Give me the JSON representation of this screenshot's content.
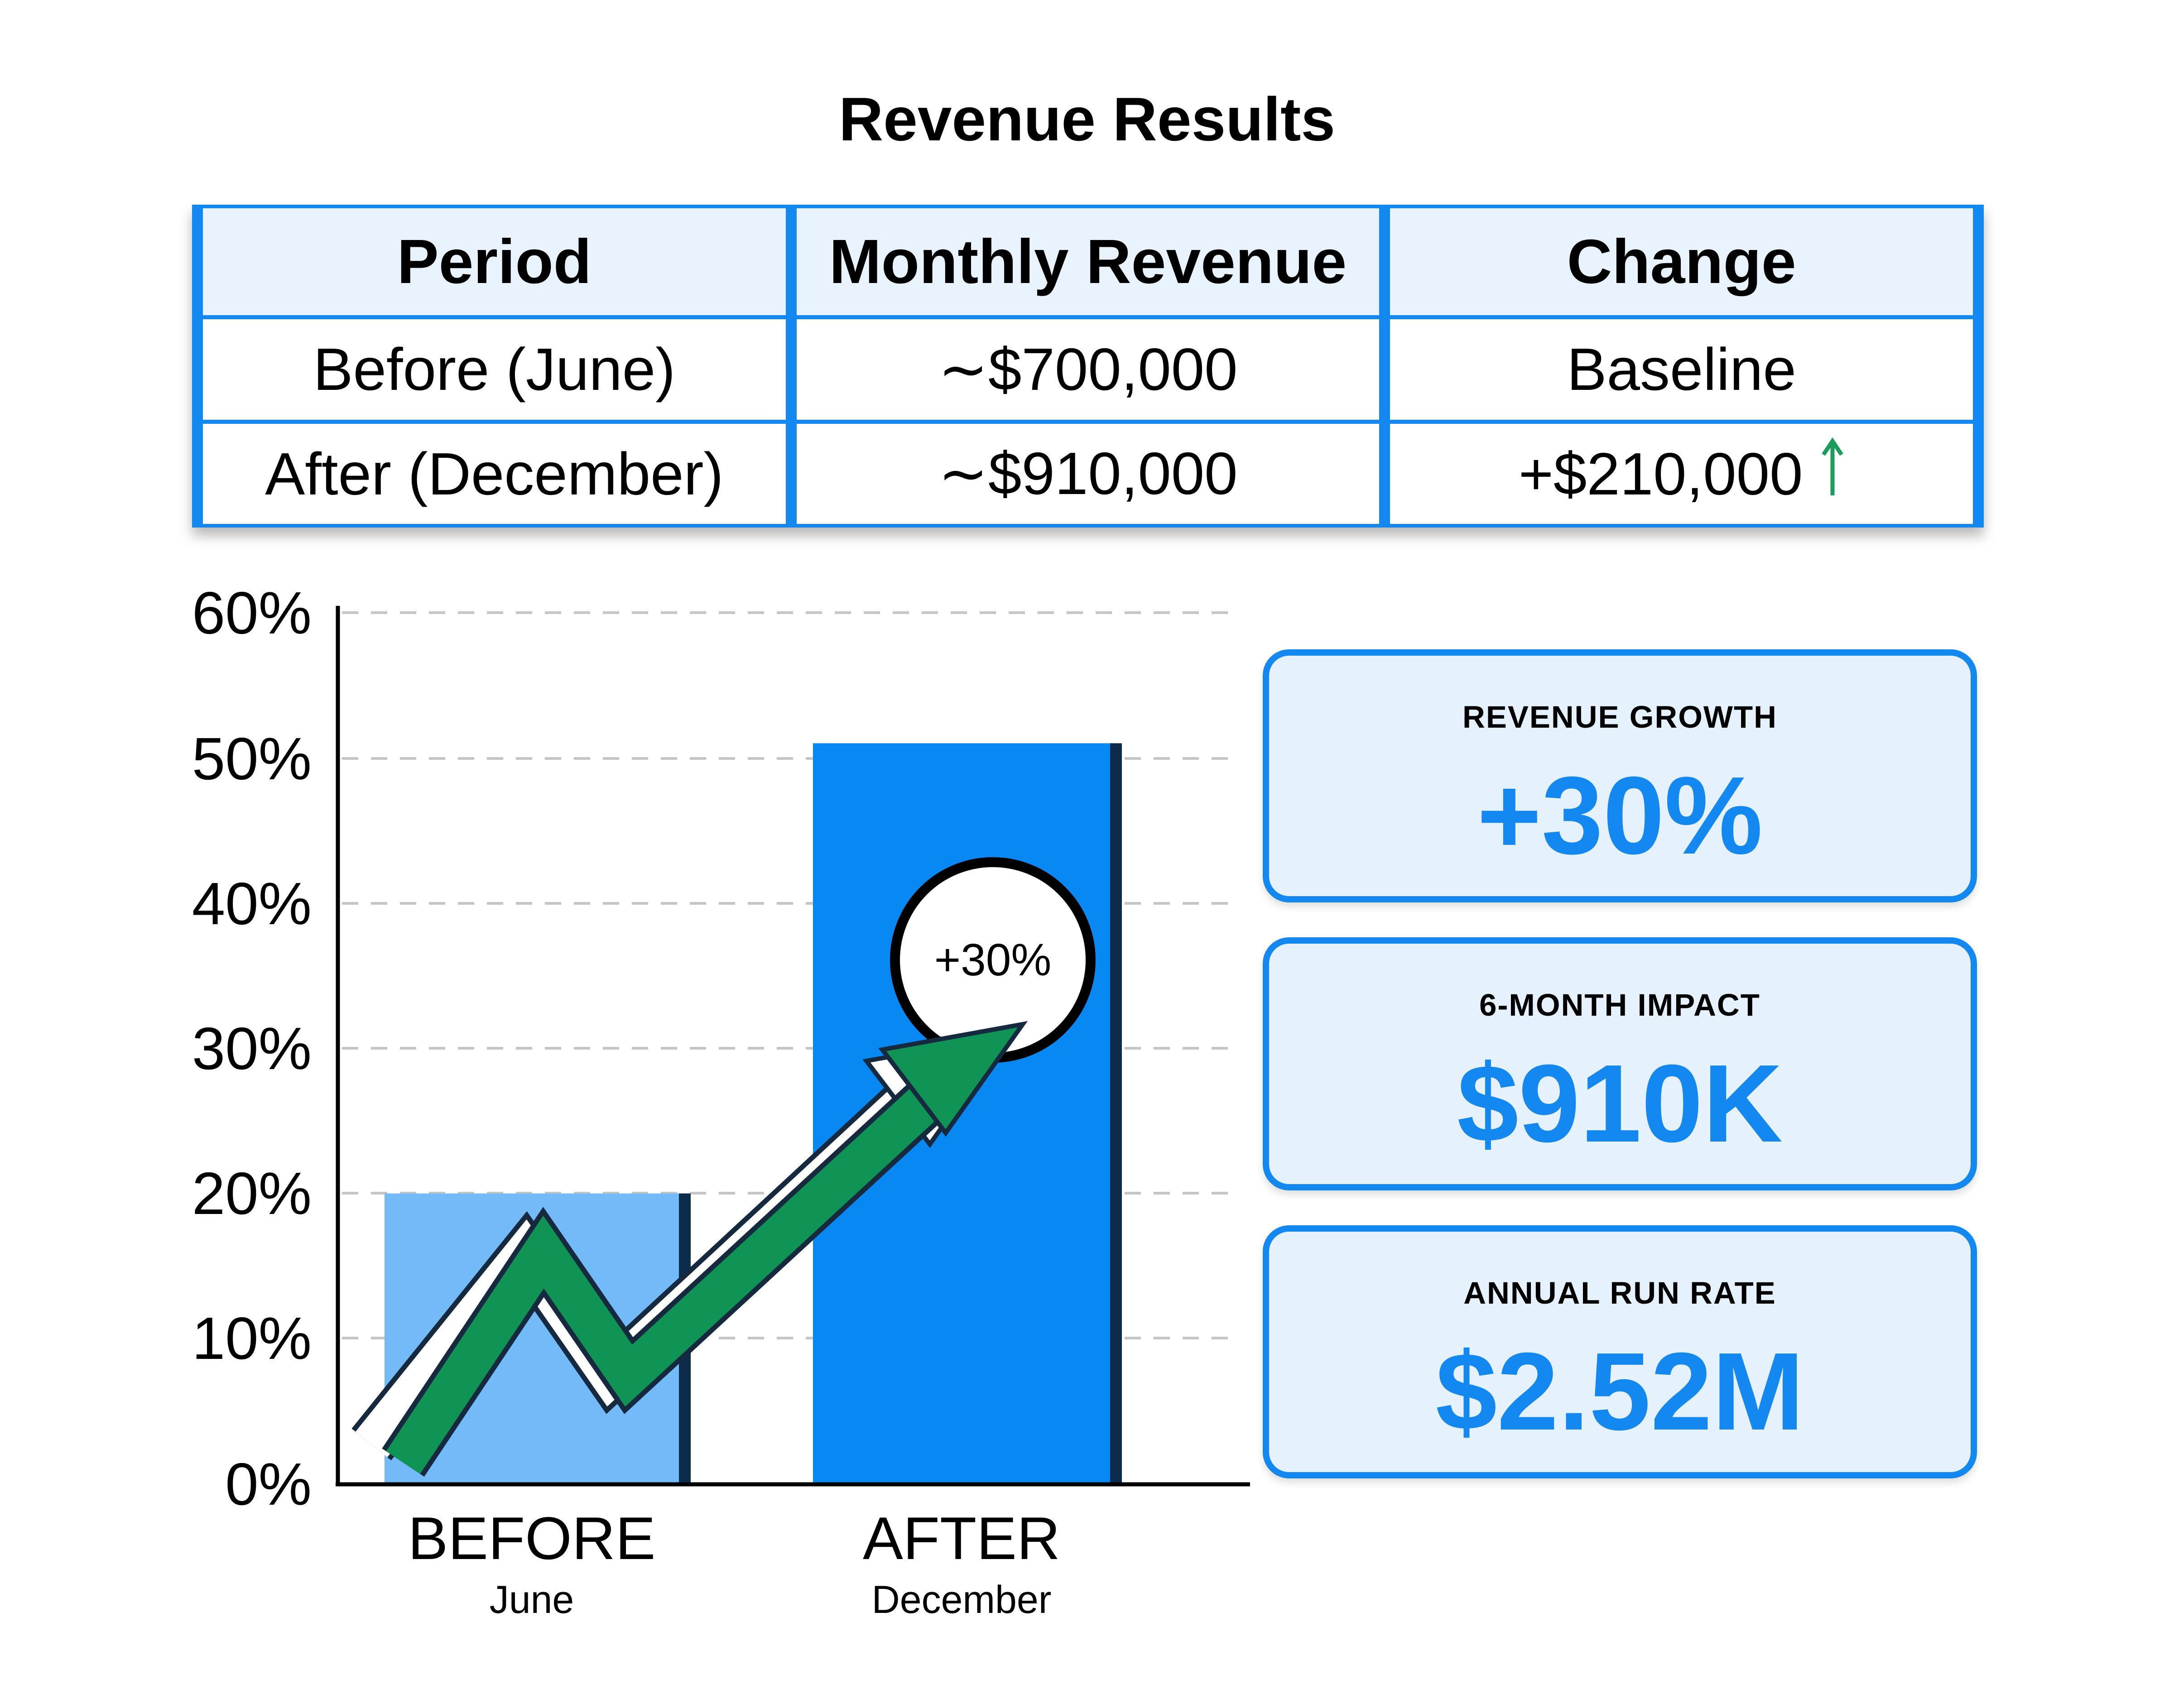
{
  "title": "Revenue Results",
  "table": {
    "headers": [
      "Period",
      "Monthly Revenue",
      "Change"
    ],
    "rows": [
      {
        "period": "Before (June)",
        "revenue": "∼$700,000",
        "change": "Baseline"
      },
      {
        "period": "After (December)",
        "revenue": "∼$910,000",
        "change": "+$210,000"
      }
    ]
  },
  "chart_data": {
    "type": "bar",
    "title": "",
    "categories": [
      "BEFORE",
      "AFTER"
    ],
    "category_sublabels": [
      "June",
      "December"
    ],
    "values": [
      20,
      51
    ],
    "unit": "percent",
    "yticks": [
      "60%",
      "50%",
      "40%",
      "30%",
      "20%",
      "10%",
      "0%"
    ],
    "ylim": [
      0,
      60
    ],
    "grid": "horizontal-dashed",
    "legend": "none",
    "annotation": "+30%",
    "bar_colors": [
      "#72BAF8",
      "#0788F2"
    ]
  },
  "stat_cards": [
    {
      "label": "REVENUE GROWTH",
      "value": "+30%"
    },
    {
      "label": "6-MONTH IMPACT",
      "value": "$910K"
    },
    {
      "label": "ANNUAL RUN RATE",
      "value": "$2.52M"
    }
  ],
  "colors": {
    "accent_blue": "#1488F1",
    "bar_before": "#72BAF8",
    "bar_after": "#0788F2",
    "navy_shadow": "#0D2B4A",
    "arrow_green": "#0F9456",
    "table_arrow_green": "#1B9C5B",
    "card_bg": "#E5F1FD",
    "table_header_bg": "#E9F3FE",
    "gridline_gray": "#C6C6C6",
    "value_blue": "#1488F1"
  }
}
